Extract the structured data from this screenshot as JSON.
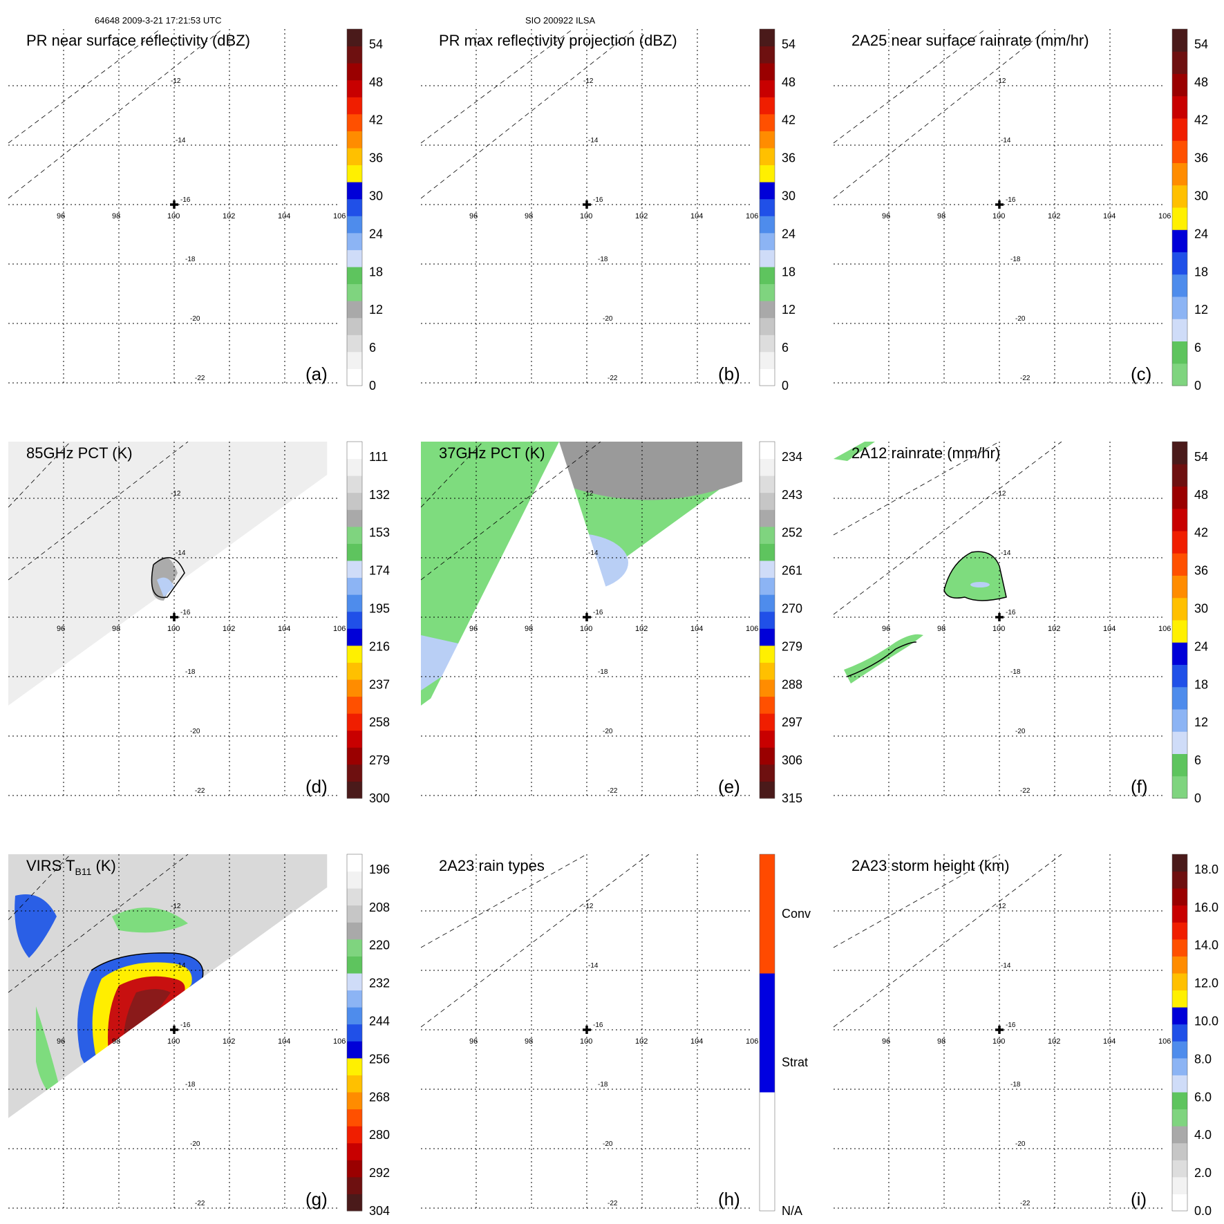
{
  "header": {
    "left": "64648 2009-3-21 17:21:53 UTC",
    "center": "SIO 200922 ILSA"
  },
  "grid": {
    "lon_labels": [
      "96",
      "98",
      "100",
      "102",
      "104",
      "106"
    ],
    "lat_labels": [
      "-12",
      "-14",
      "-16",
      "-18",
      "-20",
      "-22"
    ]
  },
  "palettes": {
    "refl": [
      "#ffffff",
      "#f2f2f2",
      "#dddddd",
      "#c6c6c6",
      "#a9a9a9",
      "#7fd47f",
      "#5ec45e",
      "#cfdcf8",
      "#8cb4f4",
      "#4e8cec",
      "#2050e8",
      "#0000d8",
      "#fff000",
      "#ffc000",
      "#ff8c00",
      "#ff5000",
      "#f01e00",
      "#c80000",
      "#9a0000",
      "#6e1010",
      "#4a1a1a"
    ],
    "cold": [
      "#4a1a1a",
      "#6e1010",
      "#9a0000",
      "#c80000",
      "#f01e00",
      "#ff5000",
      "#ff8c00",
      "#ffc000",
      "#fff000",
      "#0000d8",
      "#2050e8",
      "#4e8cec",
      "#8cb4f4",
      "#cfdcf8",
      "#5ec45e",
      "#7fd47f",
      "#a9a9a9",
      "#c6c6c6",
      "#dddddd",
      "#f2f2f2",
      "#ffffff"
    ],
    "rain": [
      "#7fd47f",
      "#5ec45e",
      "#cfdcf8",
      "#8cb4f4",
      "#4e8cec",
      "#2050e8",
      "#0000d8",
      "#fff000",
      "#ffc000",
      "#ff8c00",
      "#ff5000",
      "#f01e00",
      "#c80000",
      "#9a0000",
      "#6e1010",
      "#4a1a1a"
    ],
    "rtype": [
      "#ffffff",
      "#0000e0",
      "#ff4a00"
    ],
    "map_fill": {
      "grey_light": "#eeeeee",
      "grey_mid": "#d9d9d9",
      "green": "#7edc7e",
      "grey_dark": "#9a9a9a",
      "blue_light": "#b9cff5",
      "blue": "#2a5fe6",
      "blue_dark": "#0000cc",
      "yellow": "#ffee00",
      "red": "#c81010",
      "brown": "#8a1a1a"
    }
  },
  "panels": [
    {
      "id": "a",
      "title": "PR near surface reflectivity (dBZ)",
      "letter": "(a)",
      "palette": "refl",
      "colorbar_labels": [
        "0",
        "6",
        "12",
        "18",
        "24",
        "30",
        "36",
        "42",
        "48",
        "54"
      ],
      "swath": "none"
    },
    {
      "id": "b",
      "title": "PR max reflectivity projection (dBZ)",
      "letter": "(b)",
      "palette": "refl",
      "colorbar_labels": [
        "0",
        "6",
        "12",
        "18",
        "24",
        "30",
        "36",
        "42",
        "48",
        "54"
      ],
      "swath": "none"
    },
    {
      "id": "c",
      "title": "2A25 near surface rainrate (mm/hr)",
      "letter": "(c)",
      "palette": "rain",
      "colorbar_labels": [
        "0",
        "6",
        "12",
        "18",
        "24",
        "30",
        "36",
        "42",
        "48",
        "54"
      ],
      "swath": "none"
    },
    {
      "id": "d",
      "title": "85GHz PCT (K)",
      "letter": "(d)",
      "palette": "cold",
      "colorbar_labels": [
        "300",
        "279",
        "258",
        "237",
        "216",
        "195",
        "174",
        "153",
        "132",
        "111"
      ],
      "swath": "pct85"
    },
    {
      "id": "e",
      "title": "37GHz PCT (K)",
      "letter": "(e)",
      "palette": "cold",
      "colorbar_labels": [
        "315",
        "306",
        "297",
        "288",
        "279",
        "270",
        "261",
        "252",
        "243",
        "234"
      ],
      "swath": "pct37"
    },
    {
      "id": "f",
      "title": "2A12 rainrate (mm/hr)",
      "letter": "(f)",
      "palette": "rain",
      "colorbar_labels": [
        "0",
        "6",
        "12",
        "18",
        "24",
        "30",
        "36",
        "42",
        "48",
        "54"
      ],
      "swath": "rain2a12"
    },
    {
      "id": "g",
      "title_main": "VIRS T",
      "title_sub": "B11",
      "title_tail": " (K)",
      "letter": "(g)",
      "palette": "cold",
      "colorbar_labels": [
        "304",
        "292",
        "280",
        "268",
        "256",
        "244",
        "232",
        "220",
        "208",
        "196"
      ],
      "swath": "virs"
    },
    {
      "id": "h",
      "title": "2A23 rain types",
      "letter": "(h)",
      "palette": "rtype",
      "colorbar_labels": [
        "N/A",
        "Strat",
        "Conv"
      ],
      "swath": "none"
    },
    {
      "id": "i",
      "title": "2A23 storm height (km)",
      "letter": "(i)",
      "palette": "refl",
      "colorbar_labels": [
        "0.0",
        "2.0",
        "4.0",
        "6.0",
        "8.0",
        "10.0",
        "12.0",
        "14.0",
        "16.0",
        "18.0"
      ],
      "swath": "none"
    }
  ]
}
